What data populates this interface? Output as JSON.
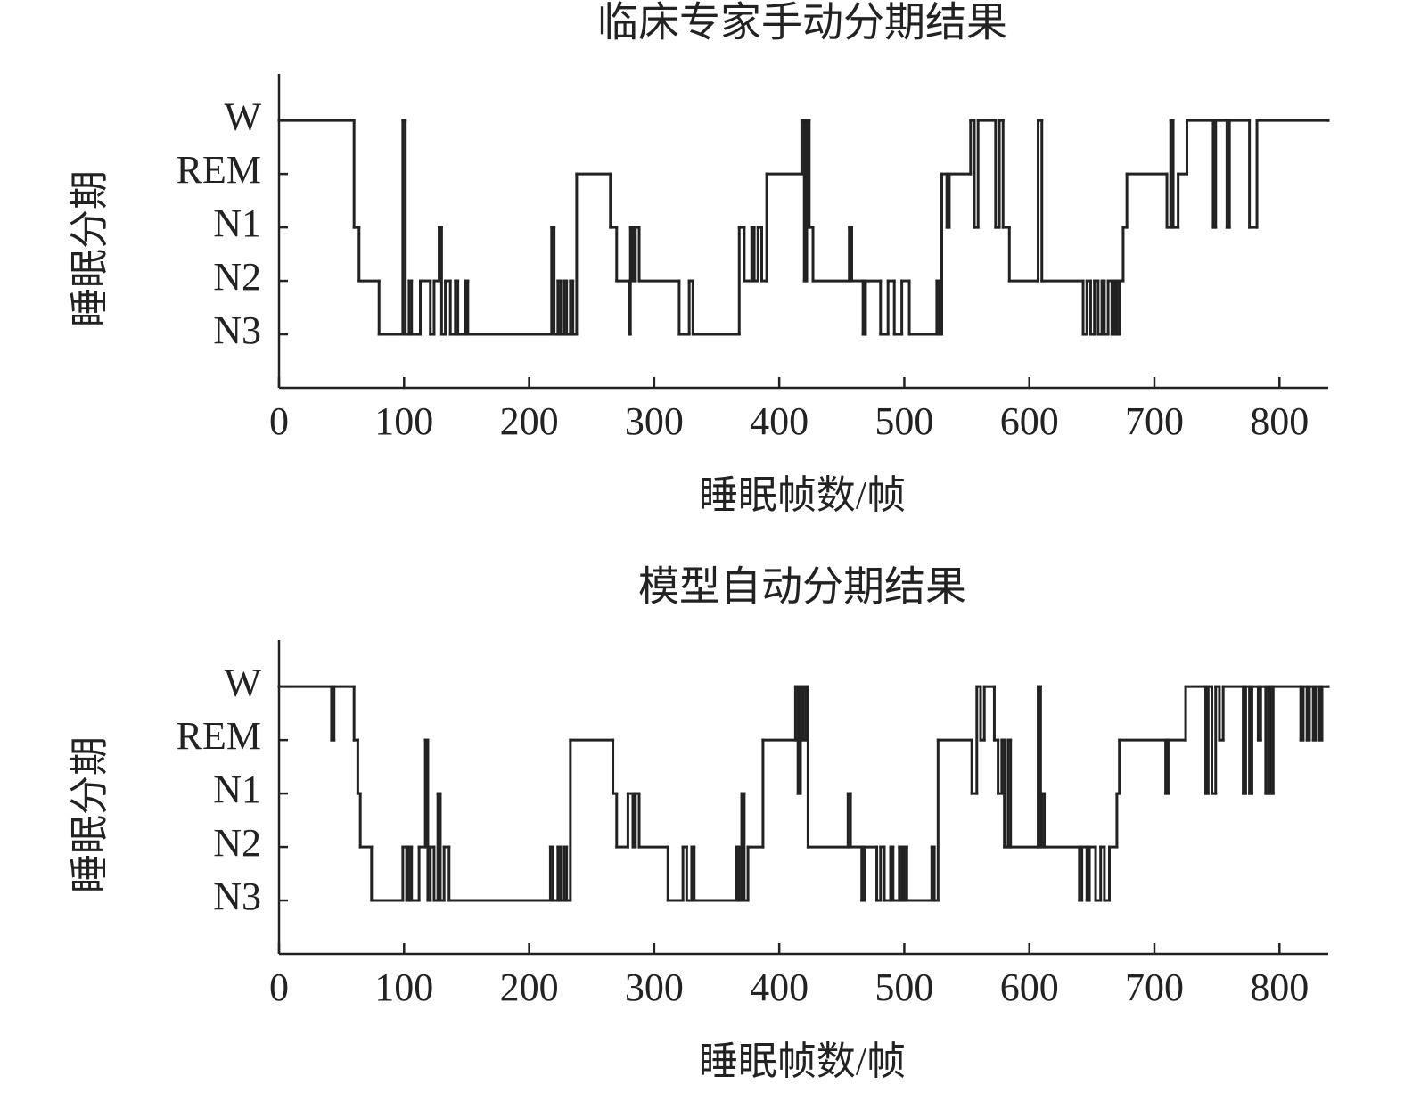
{
  "chart_data": [
    {
      "type": "line",
      "title": "临床专家手动分期结果",
      "xlabel": "睡眠帧数/帧",
      "ylabel": "睡眠分期",
      "color": "#222222",
      "xlim": [
        0,
        839
      ],
      "ylim": [
        0,
        5.87
      ],
      "xticks": [
        0,
        100,
        200,
        300,
        400,
        500,
        600,
        700,
        800
      ],
      "yticks": [
        {
          "value": 5,
          "label": "W"
        },
        {
          "value": 4,
          "label": "REM"
        },
        {
          "value": 3,
          "label": "N1"
        },
        {
          "value": 2,
          "label": "N2"
        },
        {
          "value": 1,
          "label": "N3"
        }
      ],
      "x": [
        0,
        60,
        64,
        80,
        99,
        101,
        104,
        106,
        113,
        121,
        124,
        128,
        130,
        133,
        137,
        141,
        143,
        149,
        151,
        218,
        220,
        223,
        225,
        228,
        230,
        233,
        235,
        238,
        265,
        270,
        280,
        281,
        283,
        285,
        288,
        320,
        328,
        331,
        368,
        372,
        378,
        380,
        383,
        386,
        390,
        418,
        420,
        422,
        424,
        427,
        456,
        458,
        467,
        469,
        481,
        487,
        492,
        498,
        504,
        526,
        528,
        530,
        534,
        536,
        553,
        556,
        559,
        573,
        576,
        579,
        584,
        607,
        610,
        643,
        646,
        649,
        652,
        655,
        658,
        660,
        663,
        666,
        668,
        670,
        672,
        675,
        678,
        710,
        713,
        715,
        719,
        726,
        747,
        749,
        758,
        760,
        776,
        782,
        839
      ],
      "values": [
        5,
        3,
        2,
        1,
        5,
        1,
        2,
        1,
        2,
        1,
        2,
        3,
        1,
        2,
        1,
        2,
        1,
        2,
        1,
        3,
        1,
        2,
        1,
        2,
        1,
        2,
        1,
        4,
        3,
        2,
        1,
        3,
        2,
        3,
        2,
        1,
        2,
        1,
        3,
        2,
        3,
        2,
        3,
        2,
        4,
        5,
        2,
        5,
        3,
        2,
        3,
        2,
        1,
        2,
        1,
        2,
        1,
        2,
        1,
        2,
        1,
        4,
        3,
        4,
        5,
        3,
        5,
        3,
        5,
        3,
        2,
        5,
        2,
        1,
        2,
        1,
        2,
        1,
        2,
        1,
        2,
        1,
        2,
        1,
        2,
        3,
        4,
        3,
        5,
        3,
        4,
        5,
        3,
        5,
        3,
        5,
        3,
        5,
        5
      ]
    },
    {
      "type": "line",
      "title": "模型自动分期结果",
      "xlabel": "睡眠帧数/帧",
      "ylabel": "睡眠分期",
      "color": "#222222",
      "xlim": [
        0,
        839
      ],
      "ylim": [
        0,
        5.87
      ],
      "xticks": [
        0,
        100,
        200,
        300,
        400,
        500,
        600,
        700,
        800
      ],
      "yticks": [
        {
          "value": 5,
          "label": "W"
        },
        {
          "value": 4,
          "label": "REM"
        },
        {
          "value": 3,
          "label": "N1"
        },
        {
          "value": 2,
          "label": "N2"
        },
        {
          "value": 1,
          "label": "N3"
        }
      ],
      "x": [
        0,
        42,
        44,
        60,
        63,
        65,
        74,
        99,
        102,
        104,
        106,
        112,
        117,
        119,
        121,
        124,
        127,
        129,
        132,
        136,
        217,
        219,
        223,
        225,
        228,
        230,
        233,
        267,
        270,
        279,
        283,
        285,
        288,
        311,
        323,
        326,
        330,
        332,
        366,
        368,
        370,
        372,
        375,
        387,
        413,
        415,
        417,
        419,
        421,
        423,
        455,
        457,
        466,
        468,
        478,
        481,
        484,
        489,
        491,
        496,
        498,
        500,
        502,
        522,
        524,
        527,
        554,
        558,
        561,
        564,
        572,
        575,
        578,
        580,
        583,
        585,
        607,
        609,
        610,
        612,
        640,
        642,
        646,
        648,
        653,
        657,
        660,
        664,
        670,
        672,
        709,
        711,
        725,
        741,
        743,
        746,
        749,
        752,
        755,
        771,
        773,
        776,
        778,
        783,
        785,
        789,
        791,
        793,
        795,
        817,
        819,
        822,
        824,
        827,
        829,
        832,
        834,
        839
      ],
      "values": [
        5,
        4,
        5,
        4,
        3,
        2,
        1,
        2,
        1,
        2,
        1,
        2,
        4,
        1,
        2,
        1,
        3,
        1,
        2,
        1,
        2,
        1,
        2,
        1,
        2,
        1,
        4,
        3,
        2,
        3,
        2,
        3,
        2,
        1,
        2,
        1,
        2,
        1,
        2,
        1,
        3,
        1,
        2,
        4,
        5,
        3,
        5,
        4,
        5,
        2,
        3,
        2,
        1,
        2,
        1,
        2,
        1,
        2,
        1,
        2,
        1,
        2,
        1,
        2,
        1,
        4,
        3,
        5,
        4,
        5,
        4,
        3,
        4,
        2,
        4,
        2,
        5,
        2,
        3,
        2,
        1,
        2,
        1,
        2,
        1,
        2,
        1,
        2,
        3,
        4,
        3,
        4,
        5,
        3,
        5,
        3,
        5,
        4,
        5,
        3,
        5,
        3,
        5,
        4,
        5,
        3,
        5,
        3,
        5,
        4,
        5,
        4,
        5,
        4,
        5,
        4,
        5,
        5
      ]
    }
  ]
}
